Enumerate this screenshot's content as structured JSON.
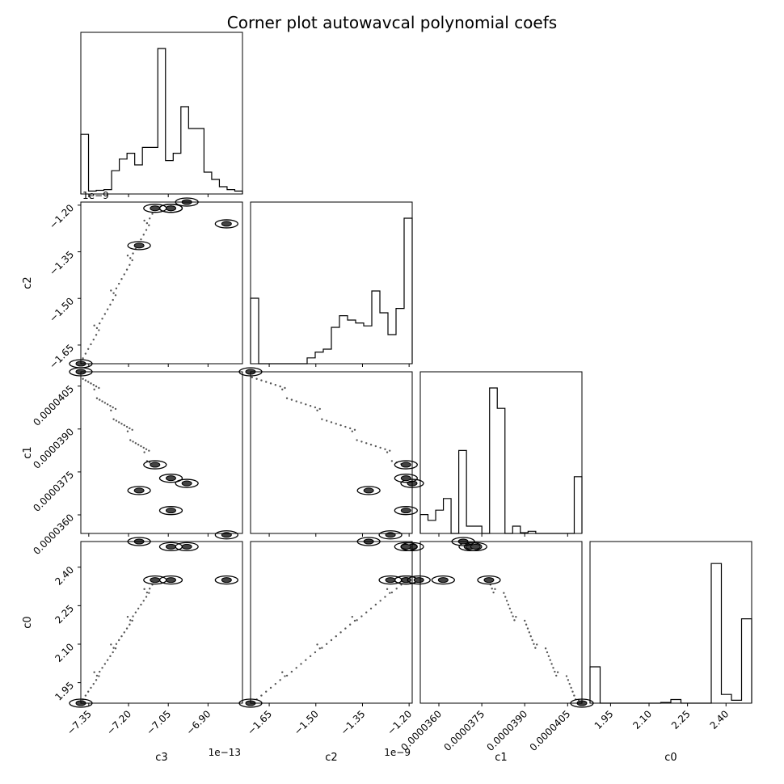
{
  "chart_data": {
    "type": "corner",
    "title": "Corner plot autowavcal polynomial coefs",
    "parameters": [
      "c3",
      "c2",
      "c1",
      "c0"
    ],
    "offset_labels": {
      "c3": "1e−13",
      "c2": "1e−9"
    },
    "top_offset_label": "1e−9",
    "ranges": {
      "c3": [
        -7.38,
        -6.77
      ],
      "c2": [
        -1.71,
        -1.19
      ],
      "c1": [
        3.535e-05,
        4.1e-05
      ],
      "c0": [
        1.87,
        2.5
      ]
    },
    "ticks": {
      "c3": [
        -7.35,
        -7.2,
        -7.05,
        -6.9
      ],
      "c2": [
        -1.65,
        -1.5,
        -1.35,
        -1.2
      ],
      "c1": [
        3.6e-05,
        3.75e-05,
        3.9e-05,
        4.05e-05
      ],
      "c0": [
        1.95,
        2.1,
        2.25,
        2.4
      ]
    },
    "tick_labels": {
      "c3": [
        "−7.35",
        "−7.20",
        "−7.05",
        "−6.90"
      ],
      "c2": [
        "−1.65",
        "−1.50",
        "−1.35",
        "−1.20"
      ],
      "c1": [
        "0.0000360",
        "0.0000375",
        "0.0000390",
        "0.0000405"
      ],
      "c0": [
        "1.95",
        "2.10",
        "2.25",
        "2.40"
      ]
    },
    "histograms": {
      "c3": [
        0.41,
        0.02,
        0.025,
        0.03,
        0.16,
        0.24,
        0.28,
        0.2,
        0.32,
        0.32,
        1.0,
        0.23,
        0.28,
        0.6,
        0.45,
        0.45,
        0.15,
        0.1,
        0.05,
        0.03,
        0.02
      ],
      "c2": [
        0.45,
        0.0,
        0.0,
        0.0,
        0.0,
        0.0,
        0.0,
        0.04,
        0.08,
        0.1,
        0.25,
        0.33,
        0.3,
        0.28,
        0.26,
        0.5,
        0.35,
        0.2,
        0.38,
        1.0
      ],
      "c1": [
        0.13,
        0.09,
        0.16,
        0.24,
        0.0,
        0.57,
        0.05,
        0.05,
        0.0,
        1.0,
        0.86,
        0.0,
        0.05,
        0.005,
        0.015,
        0.0,
        0.0,
        0.0,
        0.0,
        0.0,
        0.39
      ],
      "c0": [
        0.25,
        0.0,
        0.0,
        0.0,
        0.0,
        0.0,
        0.0,
        0.005,
        0.025,
        0.0,
        0.0,
        0.0,
        0.96,
        0.06,
        0.02,
        0.58
      ]
    },
    "clusters": {
      "c3": [
        -7.1,
        -7.04,
        -6.98,
        -7.16,
        -7.04,
        -6.83,
        -7.38
      ],
      "c2": [
        -1.21,
        -1.21,
        -1.19,
        -1.33,
        -1.21,
        -1.26,
        -1.71
      ],
      "c1": [
        3.775e-05,
        3.615e-05,
        3.71e-05,
        3.685e-05,
        3.728e-05,
        3.53e-05,
        4.1e-05
      ],
      "c0": [
        2.35,
        2.35,
        2.48,
        2.5,
        2.48,
        2.35,
        1.87
      ]
    }
  }
}
